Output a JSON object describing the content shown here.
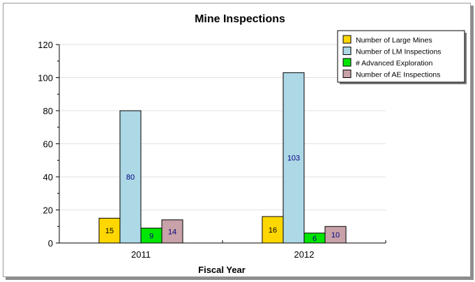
{
  "chart_data": {
    "type": "bar",
    "title": "Mine Inspections",
    "xlabel": "Fiscal Year",
    "ylabel": "",
    "categories": [
      "2011",
      "2012"
    ],
    "ylim": [
      0,
      120
    ],
    "yticks": [
      0,
      20,
      40,
      60,
      80,
      100,
      120
    ],
    "grid": true,
    "legend_position": "top-right",
    "series": [
      {
        "name": "Number of Large Mines",
        "values": [
          15,
          16
        ],
        "color": "#ffd700",
        "label_color": "#000000"
      },
      {
        "name": "Number of LM Inspections",
        "values": [
          80,
          103
        ],
        "color": "#add8e6",
        "label_color": "#000080"
      },
      {
        "name": "# Advanced Exploration",
        "values": [
          9,
          6
        ],
        "color": "#00e600",
        "label_color": "#000080"
      },
      {
        "name": "Number of AE Inspections",
        "values": [
          14,
          10
        ],
        "color": "#c8a2a8",
        "label_color": "#000080"
      }
    ]
  }
}
